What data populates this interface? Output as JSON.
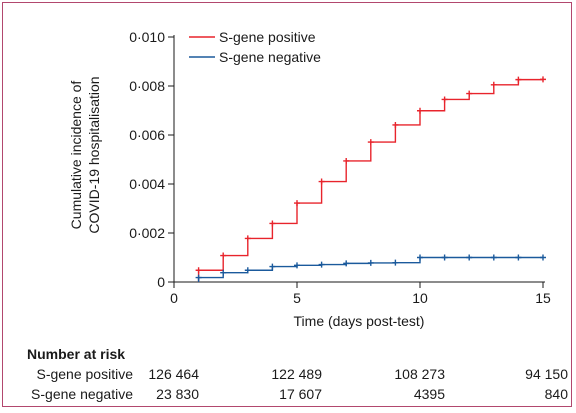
{
  "chart_data": {
    "type": "line",
    "step": true,
    "xlabel": "Time (days post-test)",
    "ylabel_lines": [
      "Cumulative incidence of",
      "COVID-19 hospitalisation"
    ],
    "xlim": [
      0,
      15
    ],
    "ylim": [
      0,
      0.01
    ],
    "xticks": [
      0,
      5,
      10,
      15
    ],
    "xtick_labels": [
      "0",
      "5",
      "10",
      "15"
    ],
    "yticks": [
      0,
      0.002,
      0.004,
      0.006,
      0.008,
      0.01
    ],
    "ytick_labels": [
      "0",
      "0·002",
      "0·004",
      "0·006",
      "0·008",
      "0·010"
    ],
    "grid": false,
    "legend_position": "top-left",
    "series": [
      {
        "name": "S-gene positive",
        "color": "#e8242c",
        "x": [
          1,
          2,
          3,
          4,
          5,
          6,
          7,
          8,
          9,
          10,
          11,
          12,
          13,
          14,
          15
        ],
        "y": [
          0.00048,
          0.00108,
          0.00178,
          0.00239,
          0.00322,
          0.0041,
          0.00494,
          0.00571,
          0.00641,
          0.00699,
          0.00745,
          0.00769,
          0.00805,
          0.00826,
          0.00827
        ]
      },
      {
        "name": "S-gene negative",
        "color": "#1b5a9c",
        "x": [
          1,
          2,
          3,
          4,
          5,
          6,
          7,
          8,
          9,
          10,
          11,
          12,
          13,
          14,
          15
        ],
        "y": [
          0.00018,
          0.00038,
          0.00048,
          0.00063,
          0.00068,
          0.00071,
          0.00076,
          0.00078,
          0.00079,
          0.001,
          0.001,
          0.001,
          0.001,
          0.001,
          0.001
        ]
      }
    ],
    "risk_table": {
      "title": "Number at risk",
      "times": [
        0,
        5,
        10,
        15
      ],
      "rows": [
        {
          "label": "S-gene positive",
          "values": [
            "126 464",
            "122 489",
            "108 273",
            "94 150"
          ]
        },
        {
          "label": "S-gene negative",
          "values": [
            "23 830",
            "17 607",
            "4395",
            "840"
          ]
        }
      ]
    }
  },
  "colors": {
    "border": "#b2476e",
    "axis": "#1a1a1a",
    "positive": "#e8242c",
    "negative": "#1b5a9c"
  }
}
